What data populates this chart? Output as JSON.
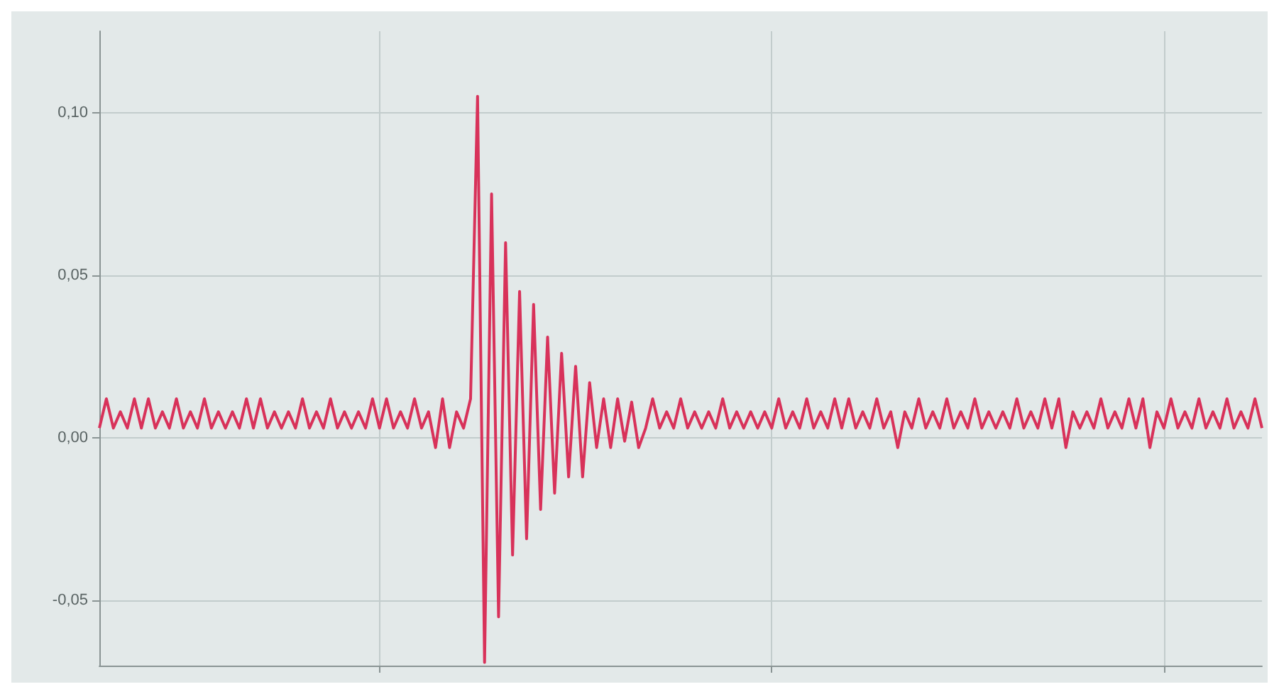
{
  "chart_data": {
    "type": "line",
    "categories": [
      null,
      null,
      null,
      null,
      null,
      null,
      null,
      null,
      null,
      null,
      null,
      null,
      null,
      null,
      null,
      null,
      null,
      null,
      null,
      null,
      null,
      null,
      null,
      null,
      null,
      null,
      null,
      null,
      null,
      null,
      null,
      null,
      null,
      null,
      null,
      null,
      null,
      null,
      null,
      null,
      null,
      null,
      null,
      null,
      null,
      null,
      null,
      null,
      null,
      null,
      null,
      null,
      null,
      null,
      null,
      null,
      null,
      null,
      null,
      null,
      null,
      null,
      null,
      null,
      null,
      null,
      null,
      null,
      null,
      null,
      null,
      null,
      null,
      null,
      null,
      null,
      null,
      null,
      null,
      null,
      null,
      null,
      null,
      null,
      null,
      null,
      null,
      null,
      null,
      null,
      null,
      null,
      null,
      null,
      null,
      null,
      null,
      null,
      null,
      null,
      null,
      null,
      null,
      null,
      null,
      null,
      null,
      null,
      null,
      null,
      null,
      null,
      null,
      null,
      null,
      null,
      null,
      null,
      null,
      null,
      null,
      null,
      null,
      null,
      null,
      null,
      null,
      null,
      null,
      null,
      null,
      null,
      null,
      null,
      null,
      null,
      null,
      null,
      null,
      null,
      null,
      null,
      null,
      null,
      null,
      null,
      null,
      null,
      null,
      null,
      null,
      null,
      null,
      null,
      null,
      null,
      null,
      null,
      null,
      null,
      null,
      null,
      null,
      null,
      null,
      null,
      null
    ],
    "ylim": [
      -0.07,
      0.125
    ],
    "yticks": [
      {
        "value": -0.05,
        "label": "-0,05"
      },
      {
        "value": 0,
        "label": "0,00"
      },
      {
        "value": 0.05,
        "label": "0,05"
      },
      {
        "value": 0.1,
        "label": "0,10"
      }
    ],
    "grid": true,
    "series": [
      {
        "color": "#d8325a",
        "values": [
          0.003,
          0.012,
          0.003,
          0.008,
          0.003,
          0.012,
          0.003,
          0.012,
          0.003,
          0.008,
          0.003,
          0.012,
          0.003,
          0.008,
          0.003,
          0.012,
          0.003,
          0.008,
          0.003,
          0.008,
          0.003,
          0.012,
          0.003,
          0.012,
          0.003,
          0.008,
          0.003,
          0.008,
          0.003,
          0.012,
          0.003,
          0.008,
          0.003,
          0.012,
          0.003,
          0.008,
          0.003,
          0.008,
          0.003,
          0.012,
          0.003,
          0.012,
          0.003,
          0.008,
          0.003,
          0.012,
          0.003,
          0.008,
          -0.003,
          0.012,
          -0.003,
          0.008,
          0.003,
          0.012,
          0.105,
          -0.069,
          0.075,
          -0.055,
          0.06,
          -0.036,
          0.045,
          -0.031,
          0.041,
          -0.022,
          0.031,
          -0.017,
          0.026,
          -0.012,
          0.022,
          -0.012,
          0.017,
          -0.003,
          0.012,
          -0.003,
          0.012,
          -0.001,
          0.011,
          -0.003,
          0.003,
          0.012,
          0.003,
          0.008,
          0.003,
          0.012,
          0.003,
          0.008,
          0.003,
          0.008,
          0.003,
          0.012,
          0.003,
          0.008,
          0.003,
          0.008,
          0.003,
          0.008,
          0.003,
          0.012,
          0.003,
          0.008,
          0.003,
          0.012,
          0.003,
          0.008,
          0.003,
          0.012,
          0.003,
          0.012,
          0.003,
          0.008,
          0.003,
          0.012,
          0.003,
          0.008,
          -0.003,
          0.008,
          0.003,
          0.012,
          0.003,
          0.008,
          0.003,
          0.012,
          0.003,
          0.008,
          0.003,
          0.012,
          0.003,
          0.008,
          0.003,
          0.008,
          0.003,
          0.012,
          0.003,
          0.008,
          0.003,
          0.012,
          0.003,
          0.012,
          -0.003,
          0.008,
          0.003,
          0.008,
          0.003,
          0.012,
          0.003,
          0.008,
          0.003,
          0.012,
          0.003,
          0.012,
          -0.003,
          0.008,
          0.003,
          0.012,
          0.003,
          0.008,
          0.003,
          0.012,
          0.003,
          0.008,
          0.003,
          0.012,
          0.003,
          0.008,
          0.003,
          0.012,
          0.003
        ]
      }
    ]
  }
}
